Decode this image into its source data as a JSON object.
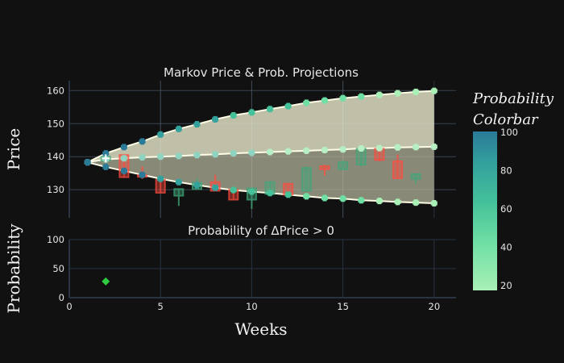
{
  "chart_data": [
    {
      "type": "candlestick+area+line",
      "title": "Markov Price & Prob. Projections",
      "xlabel": "",
      "ylabel": "Price",
      "xlim": [
        0,
        21.2
      ],
      "ylim": [
        121.5,
        163
      ],
      "yticks": [
        130,
        140,
        150,
        160
      ],
      "xticks": [
        0,
        5,
        10,
        15,
        20
      ],
      "grid": true,
      "candles": [
        {
          "x": 2,
          "open": 138.8,
          "high": 141.9,
          "low": 138.5,
          "close": 140.0
        },
        {
          "x": 3,
          "open": 140.5,
          "high": 140.6,
          "low": 133.8,
          "close": 133.8
        },
        {
          "x": 4,
          "open": 134.4,
          "high": 137.0,
          "low": 133.3,
          "close": 134.0
        },
        {
          "x": 5,
          "open": 133.0,
          "high": 133.2,
          "low": 129.1,
          "close": 129.1
        },
        {
          "x": 6,
          "open": 128.2,
          "high": 130.2,
          "low": 125.1,
          "close": 130.2
        },
        {
          "x": 7,
          "open": 130.2,
          "high": 133.5,
          "low": 130.2,
          "close": 132.1
        },
        {
          "x": 8,
          "open": 132.3,
          "high": 134.5,
          "low": 129.7,
          "close": 129.7
        },
        {
          "x": 9,
          "open": 130.0,
          "high": 130.0,
          "low": 127.0,
          "close": 127.0
        },
        {
          "x": 10,
          "open": 127.0,
          "high": 130.6,
          "low": 124.2,
          "close": 130.4
        },
        {
          "x": 11,
          "open": 128.7,
          "high": 132.6,
          "low": 128.7,
          "close": 132.3
        },
        {
          "x": 12,
          "open": 131.8,
          "high": 131.8,
          "low": 128.5,
          "close": 128.5
        },
        {
          "x": 13,
          "open": 129.7,
          "high": 137.0,
          "low": 129.7,
          "close": 136.6
        },
        {
          "x": 14,
          "open": 137.1,
          "high": 137.6,
          "low": 134.2,
          "close": 136.2
        },
        {
          "x": 15,
          "open": 136.2,
          "high": 138.8,
          "low": 136.2,
          "close": 138.3
        },
        {
          "x": 16,
          "open": 137.6,
          "high": 142.8,
          "low": 137.0,
          "close": 142.4
        },
        {
          "x": 17,
          "open": 142.4,
          "high": 142.6,
          "low": 138.6,
          "close": 139.0
        },
        {
          "x": 18,
          "open": 138.6,
          "high": 140.7,
          "low": 133.5,
          "close": 133.5
        },
        {
          "x": 19,
          "open": 133.3,
          "high": 134.8,
          "low": 131.8,
          "close": 134.7
        }
      ],
      "bands": {
        "x": [
          1,
          2,
          3,
          4,
          5,
          6,
          7,
          8,
          9,
          10,
          11,
          12,
          13,
          14,
          15,
          16,
          17,
          18,
          19,
          20
        ],
        "upper": [
          138.3,
          141.0,
          142.9,
          144.6,
          146.7,
          148.4,
          149.8,
          151.3,
          152.5,
          153.4,
          154.4,
          155.3,
          156.3,
          157.0,
          157.7,
          158.2,
          158.7,
          159.2,
          159.6,
          159.9
        ],
        "mid": [
          138.3,
          139.2,
          139.5,
          139.8,
          140.0,
          140.2,
          140.5,
          140.7,
          141.0,
          141.2,
          141.4,
          141.6,
          141.8,
          142.0,
          142.2,
          142.5,
          142.6,
          142.8,
          142.9,
          143.0
        ],
        "lower": [
          138.3,
          136.9,
          135.7,
          134.5,
          133.3,
          132.3,
          131.4,
          130.6,
          129.9,
          129.4,
          129.0,
          128.5,
          128.0,
          127.5,
          127.3,
          126.8,
          126.6,
          126.3,
          126.1,
          125.9
        ]
      },
      "current_marker": {
        "x": 2,
        "y": 139.5,
        "symbol": "cross-thin"
      },
      "colors": {
        "increasing": "#2e8b62",
        "decreasing": "#ff3b30",
        "upper_fill": "#d8d8bd",
        "lower_fill": "#9a9a86",
        "band_line": "#fffde6"
      }
    },
    {
      "type": "scatter",
      "title": "Probability of ΔPrice > 0",
      "xlabel": "Weeks",
      "ylabel": "Probability",
      "xlim": [
        0,
        21.2
      ],
      "ylim": [
        0,
        100
      ],
      "yticks": [
        0,
        50,
        100
      ],
      "xticks": [
        0,
        5,
        10,
        15,
        20
      ],
      "x": [
        2
      ],
      "y": [
        28
      ],
      "marker": "diamond",
      "color": "#2ecc40"
    }
  ],
  "colorbar": {
    "title_line1": "Probability",
    "title_line2": "Colorbar",
    "ticks": [
      20,
      40,
      60,
      80,
      100
    ],
    "range": [
      17,
      100
    ],
    "colors": [
      "#a8f0b6",
      "#6fdfa4",
      "#45c19a",
      "#33a19c",
      "#2a7a98"
    ]
  },
  "labels": {
    "main_title": "Markov Price & Prob. Projections",
    "sub_title": "Probability of ΔPrice > 0",
    "y_main": "Price",
    "y_sub": "Probability",
    "x_label": "Weeks"
  }
}
